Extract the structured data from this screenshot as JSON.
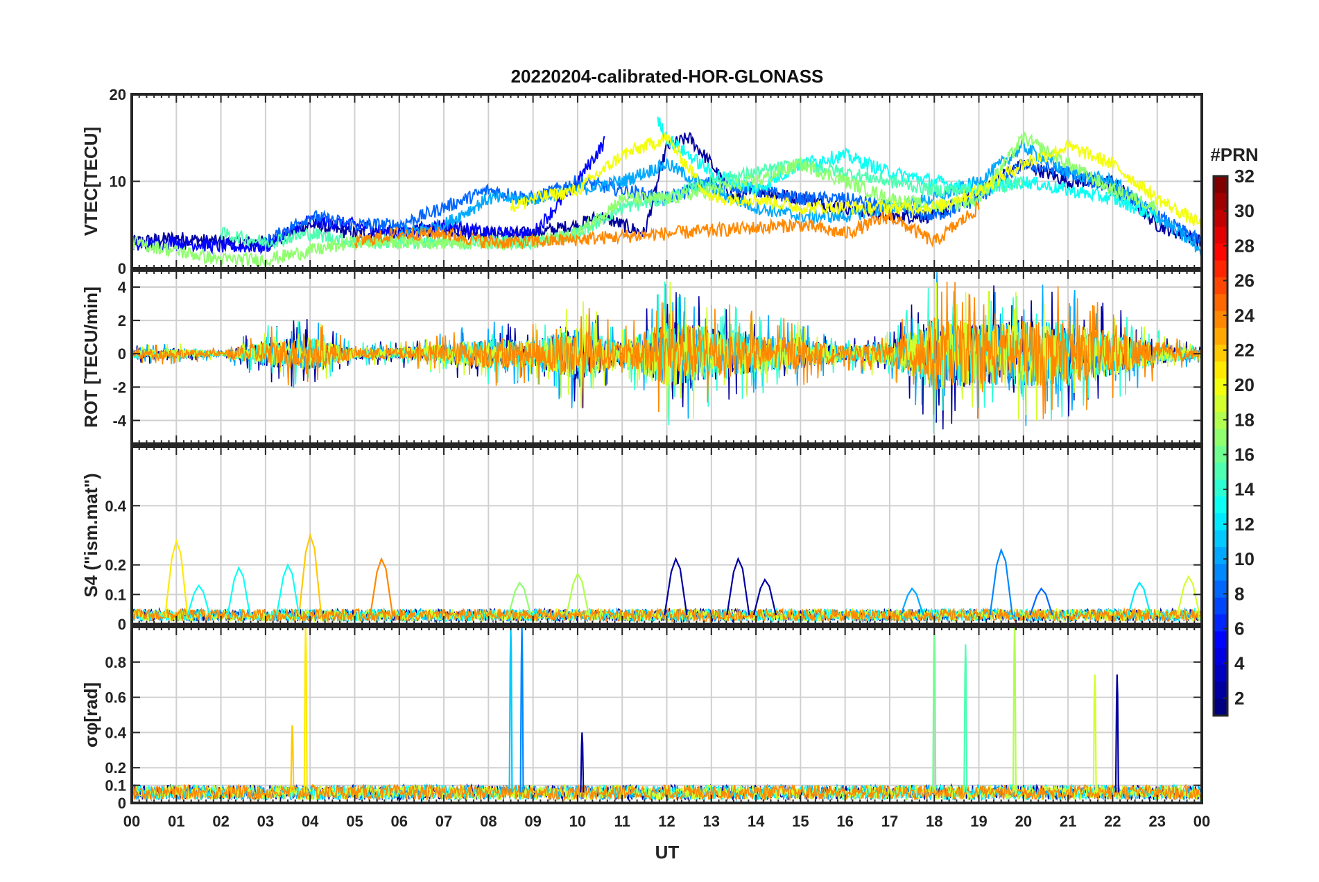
{
  "chart_data": {
    "type": "line",
    "title": "20220204-calibrated-HOR-GLONASS",
    "xlabel": "UT",
    "x_tick_labels": [
      "00",
      "01",
      "02",
      "03",
      "04",
      "05",
      "06",
      "07",
      "08",
      "09",
      "10",
      "11",
      "12",
      "13",
      "14",
      "15",
      "16",
      "17",
      "18",
      "19",
      "20",
      "21",
      "22",
      "23",
      "00"
    ],
    "xlim": [
      0,
      24
    ],
    "grid": true,
    "panels": [
      {
        "key": "vtec",
        "ylabel": "VTEC[TECU]",
        "ylim": [
          0,
          20
        ],
        "yticks": [
          0,
          10,
          20
        ],
        "ytick_labels": [
          "0",
          "10",
          "20"
        ],
        "series": [
          {
            "prn": 2,
            "x": [
              0,
              1,
              2,
              3,
              4,
              5,
              6,
              7,
              8,
              9,
              10,
              10.5,
              11,
              11.5,
              12,
              12.5,
              13,
              13.5,
              14,
              15,
              16,
              17,
              18,
              19,
              20,
              21,
              22,
              23,
              24
            ],
            "y": [
              3,
              3.5,
              3,
              3,
              5,
              4,
              4,
              4.5,
              4,
              4,
              5,
              6,
              5,
              4,
              14,
              15,
              12,
              8,
              9,
              8,
              7,
              6,
              6,
              9,
              12,
              10,
              10,
              5,
              3
            ]
          },
          {
            "prn": 5,
            "x": [
              0,
              1,
              2,
              3,
              4,
              5,
              6,
              7,
              8,
              9,
              10,
              10.6
            ],
            "y": [
              2.5,
              3,
              2.5,
              2.5,
              5.5,
              5,
              4,
              5,
              4,
              4,
              10,
              14.5
            ]
          },
          {
            "prn": 8,
            "x": [
              3,
              4,
              5,
              6,
              7,
              8,
              9,
              10,
              11,
              12,
              13,
              14,
              15,
              16,
              17,
              18,
              19,
              20,
              21,
              22,
              23,
              24
            ],
            "y": [
              3,
              6,
              5,
              5,
              7,
              9,
              8,
              10,
              9,
              8,
              10,
              9,
              8,
              8,
              7,
              6,
              8,
              12,
              11,
              9,
              6,
              3
            ]
          },
          {
            "prn": 10,
            "x": [
              6,
              7,
              8,
              9,
              10,
              11,
              12,
              13,
              14,
              15,
              16,
              17,
              18,
              19,
              20,
              21,
              22,
              23,
              24
            ],
            "y": [
              4,
              5,
              8,
              8,
              9,
              10,
              12,
              9,
              7,
              6,
              6,
              7,
              8,
              10,
              14,
              11,
              10,
              6,
              2
            ]
          },
          {
            "prn": 13,
            "x": [
              11.8,
              12,
              13,
              14,
              15,
              16,
              17,
              18,
              19,
              20,
              21,
              22,
              23
            ],
            "y": [
              17,
              15,
              11,
              9,
              12,
              13,
              11,
              10,
              9,
              10,
              9,
              8,
              6
            ]
          },
          {
            "prn": 15,
            "x": [
              2,
              3,
              4,
              5,
              6,
              7,
              8,
              9,
              10,
              11,
              12,
              13,
              14,
              15,
              16,
              17,
              18,
              19,
              20
            ],
            "y": [
              4,
              3,
              4,
              3,
              3,
              3,
              3,
              3,
              4,
              7,
              8,
              10,
              11,
              12,
              11,
              10,
              9,
              9,
              10
            ]
          },
          {
            "prn": 17,
            "x": [
              0,
              1,
              2,
              3,
              4,
              5,
              6,
              7,
              8,
              9,
              10,
              11,
              12,
              13,
              14,
              15,
              16,
              17,
              18,
              19,
              20,
              21,
              22,
              23
            ],
            "y": [
              3,
              2,
              1,
              1,
              2,
              3,
              3,
              3,
              3,
              3,
              4,
              8,
              8,
              9,
              10,
              12,
              10,
              8,
              7,
              8,
              15,
              12,
              9,
              7
            ]
          },
          {
            "prn": 20,
            "x": [
              8.5,
              9,
              10,
              11,
              12,
              13,
              14,
              15,
              16,
              17,
              18,
              19,
              20,
              21,
              22,
              23,
              24
            ],
            "y": [
              7,
              8,
              9,
              13,
              15,
              8,
              8,
              7,
              7,
              7,
              7,
              9,
              12,
              14,
              12,
              8,
              5
            ]
          },
          {
            "prn": 24,
            "x": [
              5,
              6,
              7,
              8,
              9,
              15,
              16,
              17,
              18,
              19
            ],
            "y": [
              3,
              4,
              4,
              3,
              3,
              5,
              4,
              6,
              3,
              7
            ]
          }
        ]
      },
      {
        "key": "rot",
        "ylabel": "ROT [TECU/min]",
        "ylim": [
          -5.4,
          5
        ],
        "yticks": [
          -4,
          -2,
          0,
          2,
          4
        ],
        "ytick_labels": [
          "-4",
          "-2",
          "0",
          "2",
          "4"
        ],
        "envelope": {
          "x": [
            0,
            1,
            2,
            3,
            4,
            5,
            6,
            7,
            8,
            9,
            10,
            11,
            12,
            13,
            14,
            15,
            16,
            17,
            18,
            19,
            20,
            21,
            22,
            23,
            24
          ],
          "amplitude": [
            0.6,
            0.7,
            0.3,
            1.8,
            2.2,
            0.7,
            0.8,
            1.3,
            2,
            1.8,
            3.5,
            1.5,
            4.5,
            3.5,
            2.5,
            2,
            1,
            1.5,
            5,
            4,
            4.5,
            4,
            3,
            1.5,
            0.5
          ]
        }
      },
      {
        "key": "s4",
        "ylabel": "S4 (\"ism.mat\")",
        "ylim": [
          0,
          0.6
        ],
        "yticks": [
          0,
          0.1,
          0.2,
          0.4
        ],
        "ytick_labels": [
          "0",
          "0.1",
          "0.2",
          "0.4"
        ],
        "peaks": [
          {
            "prn": 21,
            "x": 1.0,
            "y": 0.28
          },
          {
            "prn": 13,
            "x": 1.5,
            "y": 0.13
          },
          {
            "prn": 13,
            "x": 2.4,
            "y": 0.19
          },
          {
            "prn": 13,
            "x": 3.5,
            "y": 0.2
          },
          {
            "prn": 22,
            "x": 4.0,
            "y": 0.3
          },
          {
            "prn": 24,
            "x": 5.6,
            "y": 0.22
          },
          {
            "prn": 17,
            "x": 8.7,
            "y": 0.14
          },
          {
            "prn": 18,
            "x": 10.0,
            "y": 0.17
          },
          {
            "prn": 2,
            "x": 12.2,
            "y": 0.22
          },
          {
            "prn": 2,
            "x": 13.6,
            "y": 0.22
          },
          {
            "prn": 2,
            "x": 14.2,
            "y": 0.15
          },
          {
            "prn": 10,
            "x": 17.5,
            "y": 0.12
          },
          {
            "prn": 9,
            "x": 19.5,
            "y": 0.25
          },
          {
            "prn": 8,
            "x": 20.4,
            "y": 0.12
          },
          {
            "prn": 12,
            "x": 22.6,
            "y": 0.14
          },
          {
            "prn": 19,
            "x": 23.7,
            "y": 0.16
          }
        ]
      },
      {
        "key": "sigma",
        "ylabel": "σφ[rad]",
        "ylim": [
          0,
          1
        ],
        "yticks": [
          0,
          0.1,
          0.2,
          0.4,
          0.6,
          0.8
        ],
        "ytick_labels": [
          "0",
          "0.1",
          "0.2",
          "0.4",
          "0.6",
          "0.8"
        ],
        "peaks": [
          {
            "prn": 22,
            "x": 3.6,
            "y": 0.44
          },
          {
            "prn": 21,
            "x": 3.9,
            "y": 1.0
          },
          {
            "prn": 11,
            "x": 8.5,
            "y": 1.0
          },
          {
            "prn": 9,
            "x": 8.75,
            "y": 1.0
          },
          {
            "prn": 2,
            "x": 10.1,
            "y": 0.4
          },
          {
            "prn": 16,
            "x": 18.0,
            "y": 1.0
          },
          {
            "prn": 15,
            "x": 18.7,
            "y": 0.9
          },
          {
            "prn": 18,
            "x": 19.8,
            "y": 1.0
          },
          {
            "prn": 19,
            "x": 21.6,
            "y": 0.73
          },
          {
            "prn": 2,
            "x": 22.1,
            "y": 0.73
          }
        ]
      }
    ],
    "colorbar": {
      "label": "#PRN",
      "range": [
        1,
        32
      ],
      "ticks": [
        2,
        4,
        6,
        8,
        10,
        12,
        14,
        16,
        18,
        20,
        22,
        24,
        26,
        28,
        30,
        32
      ],
      "tick_labels": [
        "2",
        "4",
        "6",
        "8",
        "10",
        "12",
        "14",
        "16",
        "18",
        "20",
        "22",
        "24",
        "26",
        "28",
        "30",
        "32"
      ],
      "colormap": "jet"
    }
  }
}
